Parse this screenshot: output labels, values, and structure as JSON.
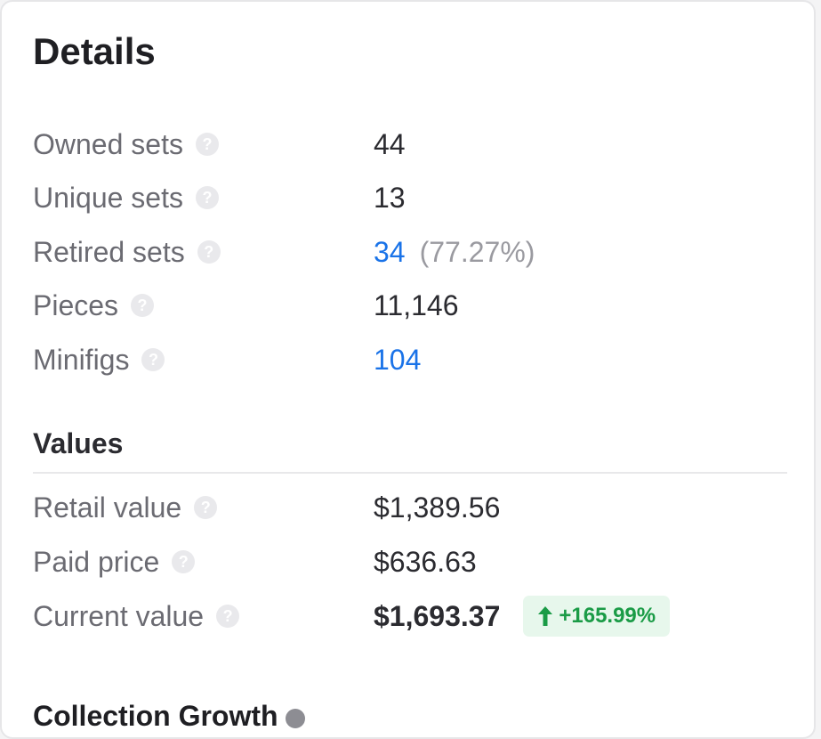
{
  "details": {
    "title": "Details",
    "rows": [
      {
        "label": "Owned sets",
        "value": "44"
      },
      {
        "label": "Unique sets",
        "value": "13"
      },
      {
        "label": "Retired sets",
        "value": "34",
        "extra": "(77.27%)"
      },
      {
        "label": "Pieces",
        "value": "11,146"
      },
      {
        "label": "Minifigs",
        "value": "104"
      }
    ]
  },
  "values": {
    "title": "Values",
    "rows": [
      {
        "label": "Retail value",
        "value": "$1,389.56"
      },
      {
        "label": "Paid price",
        "value": "$636.63"
      },
      {
        "label": "Current value",
        "value": "$1,693.37",
        "change": "+165.99%"
      }
    ]
  },
  "next_section": {
    "title": "Collection Growth"
  },
  "icons": {
    "help": "help-circle-icon",
    "trend": "arrow-up-icon",
    "next": "info-icon"
  },
  "colors": {
    "link": "#1a73e8",
    "positive": "#1a9b46",
    "positive_bg": "#e7f7ec"
  }
}
